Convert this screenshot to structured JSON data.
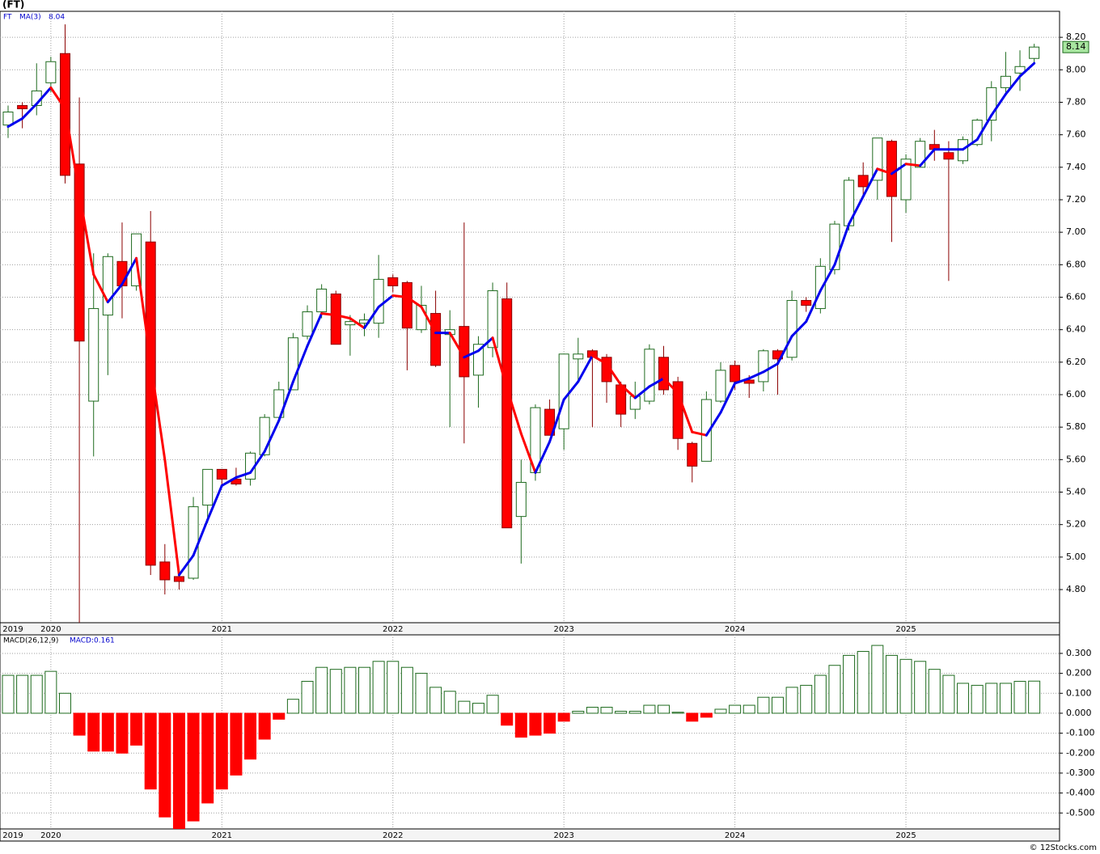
{
  "chart_data": [
    {
      "type": "candlestick",
      "title": "(FT)",
      "symbol": "FT",
      "categories": [
        "2019",
        null,
        null,
        "2020",
        null,
        null,
        null,
        null,
        null,
        null,
        null,
        null,
        null,
        null,
        null,
        "2021",
        null,
        null,
        null,
        null,
        null,
        null,
        null,
        null,
        null,
        null,
        null,
        "2022",
        null,
        null,
        null,
        null,
        null,
        null,
        null,
        null,
        null,
        null,
        null,
        "2023",
        null,
        null,
        null,
        null,
        null,
        null,
        null,
        null,
        null,
        null,
        null,
        "2024",
        null,
        null,
        null,
        null,
        null,
        null,
        null,
        null,
        null,
        null,
        null,
        "2025",
        null,
        null,
        null,
        null,
        null,
        null,
        null,
        null,
        null
      ],
      "open": [
        7.66,
        7.78,
        7.78,
        7.92,
        8.1,
        7.42,
        5.96,
        6.49,
        6.82,
        6.67,
        6.94,
        4.97,
        4.88,
        4.87,
        5.32,
        5.54,
        5.48,
        5.48,
        5.63,
        5.86,
        6.03,
        6.36,
        6.51,
        6.62,
        6.43,
        6.44,
        6.44,
        6.72,
        6.69,
        6.4,
        6.5,
        6.37,
        6.42,
        6.12,
        6.29,
        6.59,
        5.25,
        5.52,
        5.91,
        5.79,
        6.22,
        6.27,
        6.23,
        6.06,
        5.91,
        5.96,
        6.23,
        6.08,
        5.7,
        5.59,
        5.96,
        6.18,
        6.09,
        6.08,
        6.27,
        6.23,
        6.58,
        6.53,
        6.77,
        7.04,
        7.35,
        7.32,
        7.56,
        7.2,
        7.4,
        7.54,
        7.49,
        7.44,
        7.54,
        7.69,
        7.89,
        7.98,
        8.07
      ],
      "high": [
        7.78,
        7.8,
        8.04,
        8.08,
        8.28,
        7.83,
        6.87,
        6.87,
        7.06,
        6.99,
        7.13,
        5.08,
        4.9,
        5.37,
        5.54,
        5.54,
        5.55,
        5.65,
        5.88,
        6.08,
        6.38,
        6.55,
        6.68,
        6.64,
        6.49,
        6.5,
        6.86,
        6.74,
        6.7,
        6.67,
        6.64,
        6.52,
        7.06,
        6.36,
        6.69,
        6.69,
        5.6,
        5.94,
        5.97,
        6.25,
        6.35,
        6.28,
        6.25,
        6.08,
        6.08,
        6.31,
        6.3,
        6.11,
        5.71,
        6.02,
        6.2,
        6.21,
        6.12,
        6.28,
        6.28,
        6.64,
        6.6,
        6.84,
        7.07,
        7.34,
        7.43,
        7.58,
        7.57,
        7.48,
        7.58,
        7.63,
        7.56,
        7.59,
        7.7,
        7.93,
        8.11,
        8.12,
        8.16
      ],
      "low": [
        7.58,
        7.64,
        7.72,
        7.86,
        7.3,
        4.55,
        5.62,
        6.12,
        6.47,
        6.64,
        4.89,
        4.77,
        4.8,
        4.86,
        5.21,
        5.44,
        5.44,
        5.44,
        5.62,
        5.84,
        6.03,
        6.34,
        6.47,
        6.31,
        6.24,
        6.36,
        6.35,
        6.63,
        6.15,
        6.38,
        6.17,
        5.8,
        5.7,
        5.92,
        6.23,
        5.18,
        4.96,
        5.47,
        5.75,
        5.66,
        6.08,
        5.8,
        5.95,
        5.8,
        5.85,
        5.94,
        6.0,
        5.66,
        5.46,
        5.59,
        5.95,
        6.03,
        5.98,
        6.02,
        6.0,
        6.21,
        6.51,
        6.5,
        6.74,
        7.01,
        7.23,
        7.2,
        6.94,
        7.12,
        7.4,
        7.44,
        6.7,
        7.42,
        7.53,
        7.56,
        7.86,
        7.87,
        8.04
      ],
      "close": [
        7.74,
        7.76,
        7.87,
        8.05,
        7.35,
        6.33,
        6.53,
        6.85,
        6.67,
        6.99,
        4.95,
        4.86,
        4.85,
        5.31,
        5.54,
        5.48,
        5.45,
        5.64,
        5.86,
        6.03,
        6.35,
        6.51,
        6.65,
        6.31,
        6.45,
        6.46,
        6.71,
        6.67,
        6.41,
        6.55,
        6.18,
        6.4,
        6.11,
        6.31,
        6.64,
        5.18,
        5.46,
        5.92,
        5.75,
        6.25,
        6.25,
        6.23,
        6.08,
        5.88,
        5.99,
        6.28,
        6.03,
        5.73,
        5.56,
        5.97,
        6.15,
        6.08,
        6.07,
        6.27,
        6.22,
        6.58,
        6.55,
        6.79,
        7.05,
        7.32,
        7.28,
        7.58,
        7.22,
        7.45,
        7.56,
        7.51,
        7.45,
        7.57,
        7.69,
        7.89,
        7.96,
        8.02,
        8.14
      ],
      "up_color": "#ffffff",
      "up_border": "#1f6b1f",
      "down_color": "#ff0000",
      "last_box_color": "#a8e6a0",
      "series": [
        {
          "name": "MA(3)",
          "color": "#0000ee",
          "falling_color": "#ff0000",
          "values": [
            7.65,
            7.7,
            7.79,
            7.89,
            7.76,
            7.24,
            6.74,
            6.57,
            6.68,
            6.84,
            6.2,
            5.6,
            4.89,
            5.01,
            5.23,
            5.44,
            5.49,
            5.52,
            5.65,
            5.84,
            6.08,
            6.3,
            6.5,
            6.49,
            6.47,
            6.41,
            6.54,
            6.61,
            6.6,
            6.54,
            6.38,
            6.38,
            6.23,
            6.27,
            6.35,
            6.04,
            5.76,
            5.52,
            5.71,
            5.97,
            6.08,
            6.24,
            6.19,
            6.06,
            5.98,
            6.05,
            6.1,
            6.01,
            5.77,
            5.75,
            5.89,
            6.07,
            6.1,
            6.14,
            6.19,
            6.36,
            6.45,
            6.64,
            6.8,
            7.05,
            7.22,
            7.39,
            7.36,
            7.42,
            7.41,
            7.51,
            7.51,
            7.51,
            7.57,
            7.72,
            7.85,
            7.96,
            8.04
          ]
        }
      ],
      "ylim": [
        4.596,
        8.36
      ],
      "yticks": [
        {
          "value": 4.8,
          "label": "4.80"
        },
        {
          "value": 5.0,
          "label": "5.00"
        },
        {
          "value": 5.2,
          "label": "5.20"
        },
        {
          "value": 5.4,
          "label": "5.40"
        },
        {
          "value": 5.6,
          "label": "5.60"
        },
        {
          "value": 5.8,
          "label": "5.80"
        },
        {
          "value": 6.0,
          "label": "6.00"
        },
        {
          "value": 6.2,
          "label": "6.20"
        },
        {
          "value": 6.4,
          "label": "6.40"
        },
        {
          "value": 6.6,
          "label": "6.60"
        },
        {
          "value": 6.8,
          "label": "6.80"
        },
        {
          "value": 7.0,
          "label": "7.00"
        },
        {
          "value": 7.2,
          "label": "7.20"
        },
        {
          "value": 7.4,
          "label": "7.40"
        },
        {
          "value": 7.6,
          "label": "7.60"
        },
        {
          "value": 7.8,
          "label": "7.80"
        },
        {
          "value": 8.0,
          "label": "8.00"
        },
        {
          "value": 8.2,
          "label": "8.20"
        }
      ],
      "grid": true
    },
    {
      "type": "bar",
      "title": "MACD(26,12,9)",
      "current_label": "MACD:",
      "categories": [
        "2019",
        null,
        null,
        "2020",
        null,
        null,
        null,
        null,
        null,
        null,
        null,
        null,
        null,
        null,
        null,
        "2021",
        null,
        null,
        null,
        null,
        null,
        null,
        null,
        null,
        null,
        null,
        null,
        "2022",
        null,
        null,
        null,
        null,
        null,
        null,
        null,
        null,
        null,
        null,
        null,
        "2023",
        null,
        null,
        null,
        null,
        null,
        null,
        null,
        null,
        null,
        null,
        null,
        "2024",
        null,
        null,
        null,
        null,
        null,
        null,
        null,
        null,
        null,
        null,
        null,
        "2025",
        null,
        null,
        null,
        null,
        null,
        null,
        null,
        null,
        null
      ],
      "values": [
        0.19,
        0.19,
        0.19,
        0.21,
        0.1,
        -0.11,
        -0.19,
        -0.19,
        -0.2,
        -0.16,
        -0.38,
        -0.52,
        -0.58,
        -0.54,
        -0.45,
        -0.38,
        -0.31,
        -0.23,
        -0.13,
        -0.03,
        0.07,
        0.16,
        0.23,
        0.22,
        0.23,
        0.23,
        0.26,
        0.26,
        0.23,
        0.2,
        0.13,
        0.11,
        0.06,
        0.05,
        0.09,
        -0.06,
        -0.12,
        -0.11,
        -0.1,
        -0.04,
        0.01,
        0.03,
        0.03,
        0.01,
        0.01,
        0.04,
        0.04,
        0.005,
        -0.04,
        -0.02,
        0.02,
        0.04,
        0.04,
        0.08,
        0.08,
        0.13,
        0.14,
        0.19,
        0.24,
        0.29,
        0.31,
        0.34,
        0.29,
        0.27,
        0.26,
        0.22,
        0.19,
        0.15,
        0.14,
        0.15,
        0.15,
        0.16,
        0.161
      ],
      "up_border": "#1f6b1f",
      "up_color": "#ffffff",
      "down_color": "#ff0000",
      "ylim": [
        -0.58,
        0.393
      ],
      "yticks": [
        {
          "value": -0.5,
          "label": "-0.500"
        },
        {
          "value": -0.4,
          "label": "-0.400"
        },
        {
          "value": -0.3,
          "label": "-0.300"
        },
        {
          "value": -0.2,
          "label": "-0.200"
        },
        {
          "value": -0.1,
          "label": "-0.100"
        },
        {
          "value": 0,
          "label": "0.000"
        },
        {
          "value": 0.1,
          "label": "0.100"
        },
        {
          "value": 0.2,
          "label": "0.200"
        },
        {
          "value": 0.3,
          "label": "0.300"
        }
      ],
      "grid": true
    }
  ],
  "footer": "© 12Stocks.com"
}
